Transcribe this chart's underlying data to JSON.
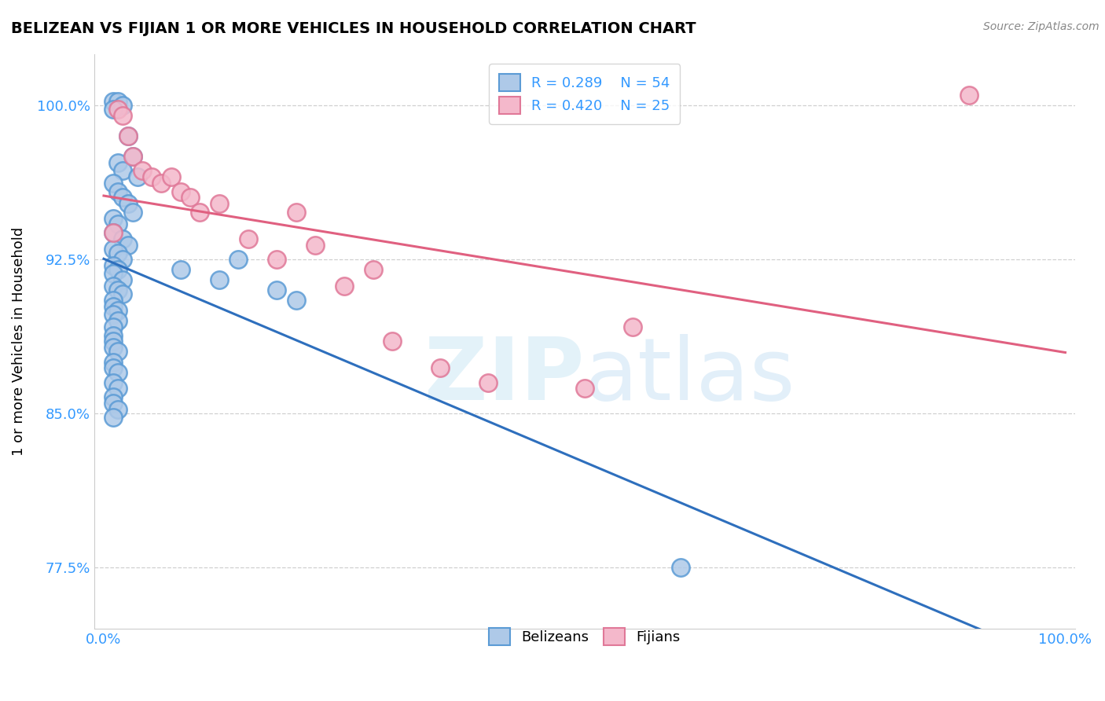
{
  "title": "BELIZEAN VS FIJIAN 1 OR MORE VEHICLES IN HOUSEHOLD CORRELATION CHART",
  "source_text": "Source: ZipAtlas.com",
  "ylabel": "1 or more Vehicles in Household",
  "xlim": [
    -1.0,
    101.0
  ],
  "ylim": [
    74.5,
    102.5
  ],
  "yticks": [
    77.5,
    85.0,
    92.5,
    100.0
  ],
  "ytick_labels": [
    "77.5%",
    "85.0%",
    "92.5%",
    "100.0%"
  ],
  "xtick_labels": [
    "0.0%",
    "100.0%"
  ],
  "xticks": [
    0.0,
    100.0
  ],
  "legend_r1": "R = 0.289",
  "legend_n1": "N = 54",
  "legend_r2": "R = 0.420",
  "legend_n2": "N = 25",
  "blue_face": "#aec9e8",
  "blue_edge": "#5b9bd5",
  "pink_face": "#f4b8cb",
  "pink_edge": "#e07898",
  "trend_blue": "#2e6fbd",
  "trend_pink": "#e06080",
  "watermark_color": "#cde8f5",
  "belizean_x": [
    1.0,
    1.5,
    2.0,
    1.0,
    2.5,
    3.0,
    1.5,
    2.0,
    3.5,
    1.0,
    1.5,
    2.0,
    2.5,
    3.0,
    1.0,
    1.5,
    1.0,
    2.0,
    2.5,
    1.0,
    1.5,
    2.0,
    1.0,
    1.5,
    1.0,
    2.0,
    1.0,
    1.5,
    2.0,
    1.0,
    1.0,
    1.5,
    1.0,
    1.5,
    1.0,
    1.0,
    1.0,
    1.0,
    1.5,
    1.0,
    1.0,
    1.5,
    1.0,
    1.5,
    1.0,
    1.0,
    1.5,
    1.0,
    8.0,
    12.0,
    14.0,
    18.0,
    20.0,
    60.0
  ],
  "belizean_y": [
    100.2,
    100.2,
    100.0,
    99.8,
    98.5,
    97.5,
    97.2,
    96.8,
    96.5,
    96.2,
    95.8,
    95.5,
    95.2,
    94.8,
    94.5,
    94.2,
    93.8,
    93.5,
    93.2,
    93.0,
    92.8,
    92.5,
    92.2,
    92.0,
    91.8,
    91.5,
    91.2,
    91.0,
    90.8,
    90.5,
    90.2,
    90.0,
    89.8,
    89.5,
    89.2,
    88.8,
    88.5,
    88.2,
    88.0,
    87.5,
    87.2,
    87.0,
    86.5,
    86.2,
    85.8,
    85.5,
    85.2,
    84.8,
    92.0,
    91.5,
    92.5,
    91.0,
    90.5,
    77.5
  ],
  "fijian_x": [
    1.5,
    2.0,
    2.5,
    3.0,
    4.0,
    5.0,
    6.0,
    7.0,
    8.0,
    9.0,
    10.0,
    12.0,
    15.0,
    18.0,
    20.0,
    25.0,
    30.0,
    35.0,
    40.0,
    50.0,
    22.0,
    28.0,
    90.0,
    55.0,
    1.0
  ],
  "fijian_y": [
    99.8,
    99.5,
    98.5,
    97.5,
    96.8,
    96.5,
    96.2,
    96.5,
    95.8,
    95.5,
    94.8,
    95.2,
    93.5,
    92.5,
    94.8,
    91.2,
    88.5,
    87.2,
    86.5,
    86.2,
    93.2,
    92.0,
    100.5,
    89.2,
    93.8
  ]
}
